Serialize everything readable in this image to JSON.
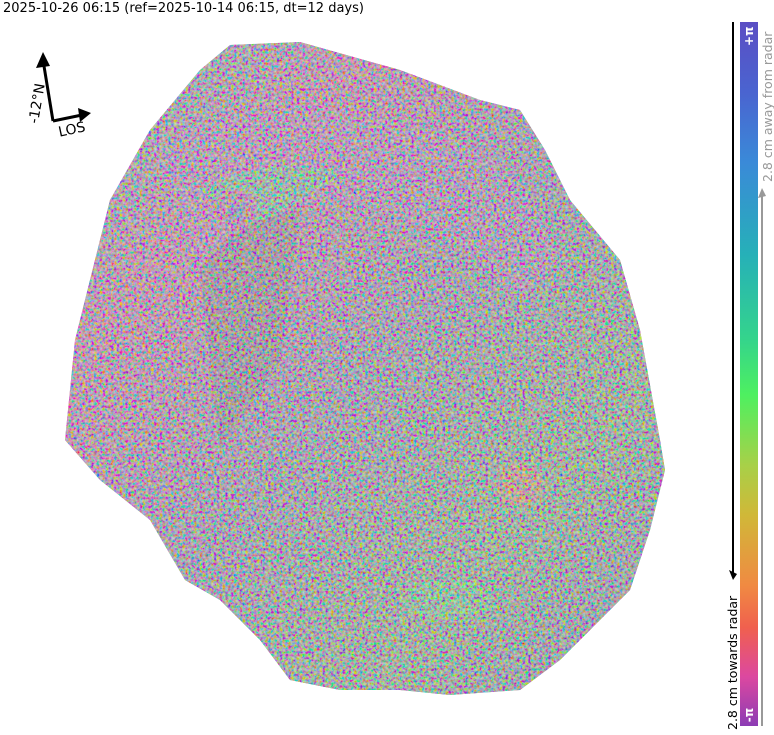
{
  "title": "2025-10-26 06:15 (ref=2025-10-14 06:15, dt=12 days)",
  "compass": {
    "north_label": "-12°N",
    "los_label": "LOS"
  },
  "colorbar": {
    "top_label": "+π",
    "bottom_label": "-π",
    "away_label": "2.8 cm away from radar",
    "towards_label": "2.8 cm towards radar",
    "colors": [
      "#5b4ec4",
      "#3a8ad8",
      "#26b0b8",
      "#4ef060",
      "#d0b838",
      "#f0604e",
      "#dc48a0",
      "#8c3cb4"
    ]
  }
}
